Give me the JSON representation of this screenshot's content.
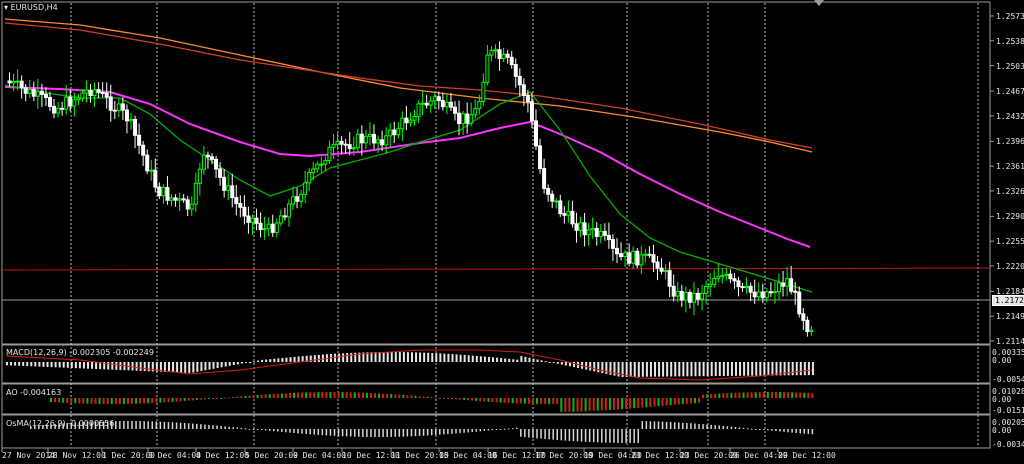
{
  "main": {
    "symbol": "EURUSD,H4",
    "price_levels": [
      "1.25730",
      "1.25380",
      "1.25030",
      "1.24670",
      "1.24320",
      "1.23960",
      "1.23610",
      "1.23260",
      "1.22900",
      "1.22550",
      "1.22200",
      "1.21840",
      "1.21490",
      "1.21140"
    ],
    "current_price": "1.21729",
    "colors": {
      "bull": "#00ff00",
      "bear": "#ffffff",
      "ma_fast": "#00b000",
      "ma_mid": "#ff33ff",
      "ma_slow1": "#ff8c2a",
      "ma_slow2": "#d0402a",
      "hline": "#c01818"
    }
  },
  "macd": {
    "label": "MACD(12,26,9) -0.002305 -0.002249",
    "levels": [
      "0.003355",
      "0.00",
      "-0.00543"
    ]
  },
  "ao": {
    "label": "AO -0.004163",
    "levels": [
      "0.010284",
      "0.00",
      "-0.01518"
    ]
  },
  "osma": {
    "label": "OsMA(12,26,9) -0.0000556",
    "levels": [
      "0.002055",
      "0.00",
      "-0.00341"
    ]
  },
  "time_axis": [
    "27 Nov 2014",
    "28 Nov 12:00",
    "1 Dec 20:00",
    "3 Dec 04:00",
    "4 Dec 12:00",
    "5 Dec 20:00",
    "9 Dec 04:00",
    "10 Dec 12:00",
    "11 Dec 20:00",
    "15 Dec 04:00",
    "16 Dec 12:00",
    "17 Dec 20:00",
    "19 Dec 04:00",
    "23 Dec 12:00",
    "23 Dec 20:00",
    "26 Dec 04:00",
    "29 Dec 12:00"
  ]
}
